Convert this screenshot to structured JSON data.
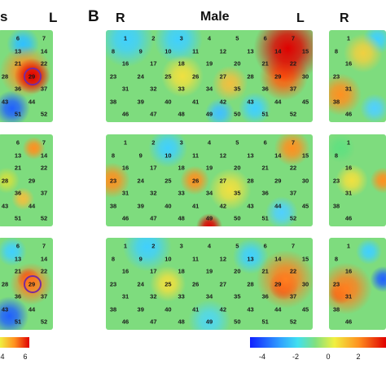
{
  "headings": {
    "left_cut": "s",
    "panel_letter": "B",
    "male": "Male",
    "right_side": "R",
    "left_side": "L",
    "far_right": "R"
  },
  "colorbar_left": {
    "ticks": [
      "4",
      "6"
    ]
  },
  "colorbar_right": {
    "ticks": [
      "-4",
      "-2",
      "0",
      "2"
    ]
  },
  "colors": {
    "blue": "#2040ff",
    "cyan": "#30d0ff",
    "green": "#70d870",
    "yellow": "#f0f040",
    "orange": "#ff9020",
    "red": "#e00000",
    "ring": "#7a2a9a"
  }
}
